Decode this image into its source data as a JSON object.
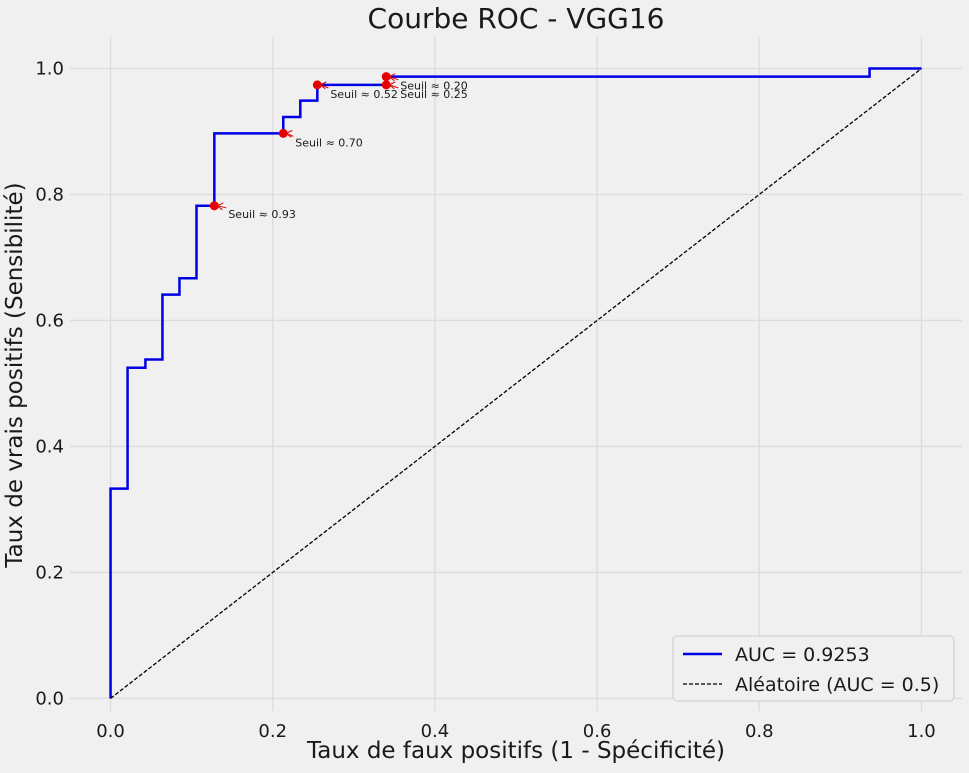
{
  "chart_data": {
    "type": "line",
    "title": "Courbe ROC - VGG16",
    "xlabel": "Taux de faux positifs (1 - Spécificité)",
    "ylabel": "Taux de vrais positifs (Sensibilité)",
    "xlim": [
      -0.05,
      1.05
    ],
    "ylim": [
      -0.02,
      1.05
    ],
    "x_ticks": [
      0.0,
      0.2,
      0.4,
      0.6,
      0.8,
      1.0
    ],
    "x_tick_labels": [
      "0.0",
      "0.2",
      "0.4",
      "0.6",
      "0.8",
      "1.0"
    ],
    "y_ticks": [
      0.0,
      0.2,
      0.4,
      0.6,
      0.8,
      1.0
    ],
    "y_tick_labels": [
      "0.0",
      "0.2",
      "0.4",
      "0.6",
      "0.8",
      "1.0"
    ],
    "grid": true,
    "legend_position": "lower-right",
    "series": [
      {
        "name": "AUC = 0.9253",
        "color": "#0000e6",
        "style": "solid",
        "x": [
          0.0,
          0.0,
          0.021,
          0.021,
          0.043,
          0.043,
          0.064,
          0.064,
          0.085,
          0.085,
          0.106,
          0.106,
          0.128,
          0.128,
          0.213,
          0.213,
          0.234,
          0.234,
          0.255,
          0.255,
          0.34,
          0.34,
          0.936,
          0.936,
          1.0
        ],
        "y": [
          0.0,
          0.333,
          0.333,
          0.525,
          0.525,
          0.538,
          0.538,
          0.641,
          0.641,
          0.667,
          0.667,
          0.782,
          0.782,
          0.897,
          0.897,
          0.923,
          0.923,
          0.949,
          0.949,
          0.974,
          0.974,
          0.987,
          0.987,
          1.0,
          1.0
        ]
      },
      {
        "name": "Aléatoire (AUC = 0.5)",
        "color": "#000000",
        "style": "dashed",
        "x": [
          0.0,
          1.0
        ],
        "y": [
          0.0,
          1.0
        ]
      }
    ],
    "annotations": [
      {
        "label": "Seuil ≈ 0.93",
        "x": 0.128,
        "y": 0.782
      },
      {
        "label": "Seuil ≈ 0.70",
        "x": 0.213,
        "y": 0.897
      },
      {
        "label": "Seuil ≈ 0.52",
        "x": 0.255,
        "y": 0.974
      },
      {
        "label": "Seuil ≈ 0.25",
        "x": 0.34,
        "y": 0.974
      },
      {
        "label": "Seuil ≈ 0.20",
        "x": 0.34,
        "y": 0.987
      }
    ],
    "marker_color": "#e60000"
  }
}
